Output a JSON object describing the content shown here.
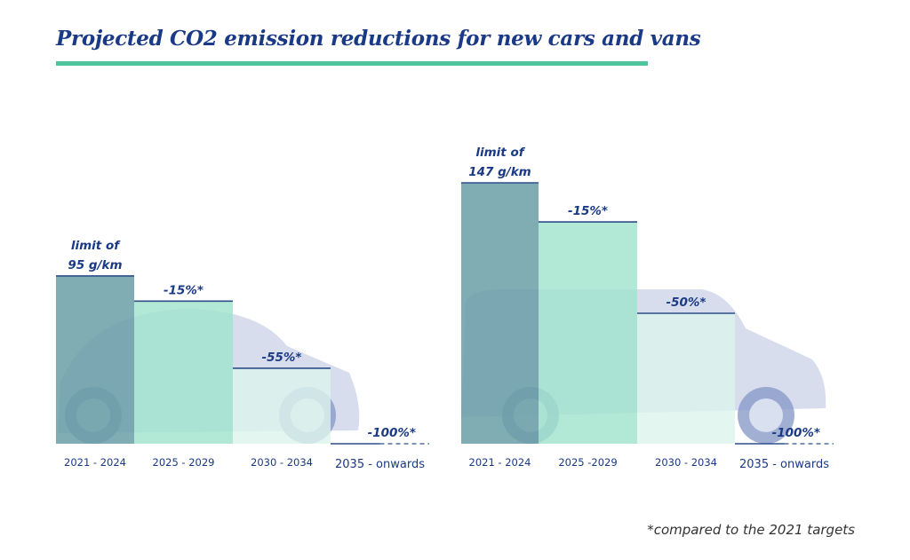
{
  "title": "Projected CO2 emission reductions for new cars and vans",
  "footnote": "*compared to the 2021 targets",
  "colors": {
    "title": "#1a3a85",
    "title_rule": "#4dc6a0",
    "label": "#1a3a85",
    "bar_fills": [
      "#6a9ea6",
      "#9fe3cc",
      "#dcf4ec",
      "#ffffff"
    ],
    "bar_line": "#2e4f8a"
  },
  "chart_data": [
    {
      "type": "bar",
      "title": "Cars",
      "unit": "g/km",
      "categories": [
        "2021 - 2024",
        "2025 - 2029",
        "2030 - 2034",
        "2035 - onwards"
      ],
      "values": [
        95,
        80.75,
        42.75,
        0
      ],
      "reductions_pct": [
        0,
        -15,
        -55,
        -100
      ],
      "labels": [
        [
          "limit of",
          "95 g/km"
        ],
        [
          "-15%*"
        ],
        [
          "-55%*"
        ],
        [
          "-100%*"
        ]
      ],
      "ylim": [
        0,
        150
      ]
    },
    {
      "type": "bar",
      "title": "Vans",
      "unit": "g/km",
      "categories": [
        "2021 - 2024",
        "2025 -2029",
        "2030 - 2034",
        "2035 - onwards"
      ],
      "values": [
        147,
        124.95,
        73.5,
        0
      ],
      "reductions_pct": [
        0,
        -15,
        -50,
        -100
      ],
      "labels": [
        [
          "limit of",
          "147 g/km"
        ],
        [
          "-15%*"
        ],
        [
          "-50%*"
        ],
        [
          "-100%*"
        ]
      ],
      "ylim": [
        0,
        150
      ]
    }
  ]
}
